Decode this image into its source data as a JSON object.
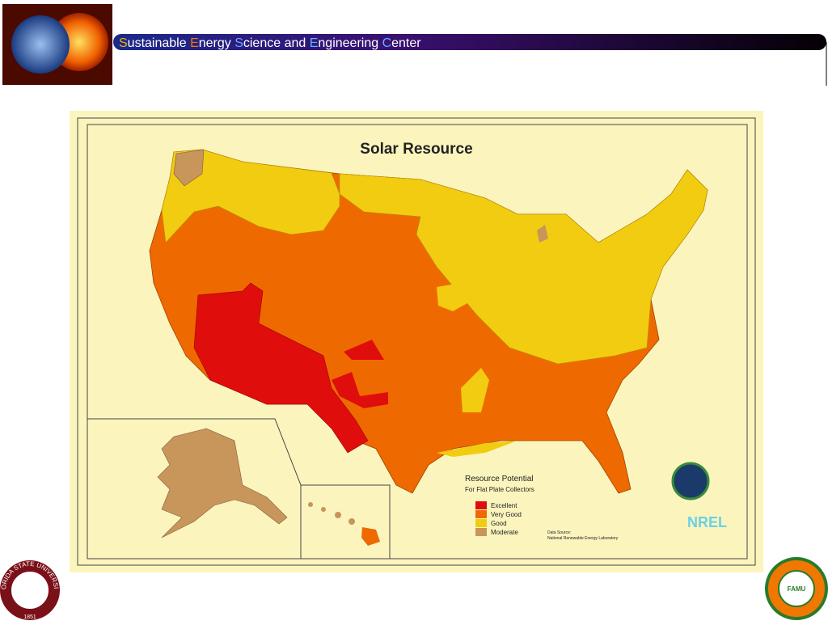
{
  "header": {
    "title_parts": [
      {
        "text": "S",
        "color": "#f0b400"
      },
      {
        "text": "ustainable ",
        "color": "#ffffff"
      },
      {
        "text": "E",
        "color": "#f07800"
      },
      {
        "text": "nergy ",
        "color": "#ffffff"
      },
      {
        "text": "S",
        "color": "#7aa0ff"
      },
      {
        "text": "cience and ",
        "color": "#ffffff"
      },
      {
        "text": "E",
        "color": "#5fb0ff"
      },
      {
        "text": "ngineering ",
        "color": "#ffffff"
      },
      {
        "text": "C",
        "color": "#5fb0ff"
      },
      {
        "text": "enter",
        "color": "#ffffff"
      }
    ]
  },
  "map": {
    "title": "Solar Resource",
    "legend": {
      "title": "Resource Potential",
      "subtitle": "For Flat Plate Collectors",
      "items": [
        {
          "label": "Excellent",
          "color": "#e00d0d"
        },
        {
          "label": "Very Good",
          "color": "#ee6a00"
        },
        {
          "label": "Good",
          "color": "#f2cc10"
        },
        {
          "label": "Moderate",
          "color": "#c8955a"
        }
      ]
    },
    "source": [
      "Data Source:",
      "National Renewable Energy Laboratory"
    ],
    "logo": "NREL"
  },
  "seals": {
    "left": "FLORIDA STATE UNIVERSITY",
    "left_year": "1851",
    "right": "FAMU"
  }
}
